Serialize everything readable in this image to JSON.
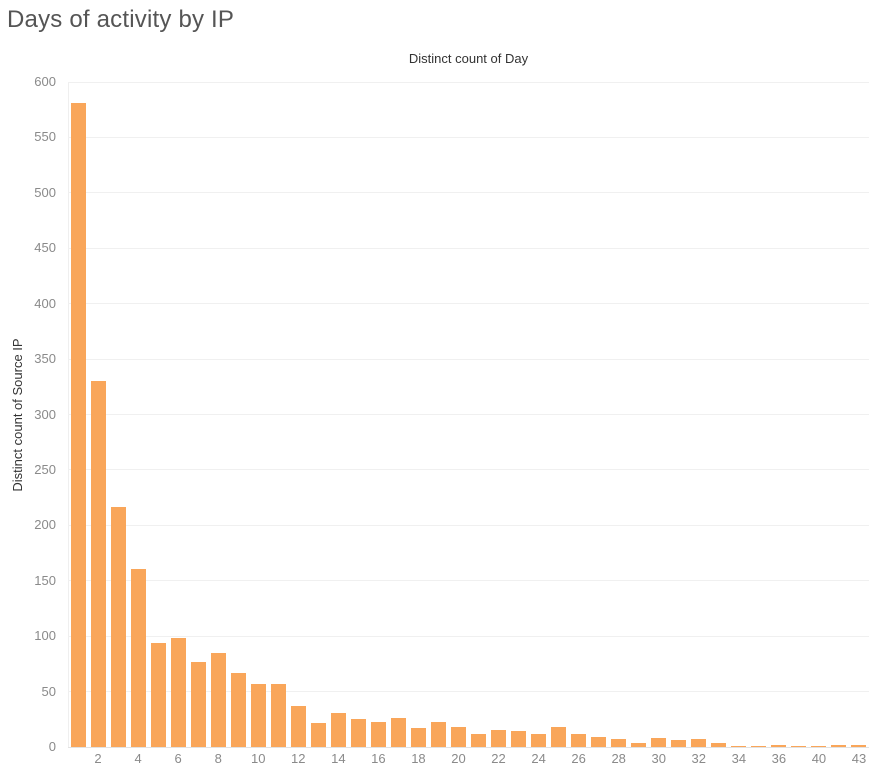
{
  "title": "Days of activity by IP",
  "colors": {
    "bar": "#F9A65A",
    "gridline": "#F0F0F0",
    "zero_line": "#E2E2E2",
    "tick_label": "#8A8A8A",
    "axis_title": "#333333",
    "title": "#555555"
  },
  "chart_data": {
    "type": "bar",
    "title": "Days of activity by IP",
    "xlabel": "Distinct count of Day",
    "ylabel": "Distinct count of Source IP",
    "categories": [
      1,
      2,
      3,
      4,
      5,
      6,
      7,
      8,
      9,
      10,
      11,
      12,
      13,
      14,
      15,
      16,
      17,
      18,
      19,
      20,
      21,
      22,
      23,
      24,
      25,
      26,
      27,
      28,
      29,
      30,
      31,
      32,
      33,
      34,
      35,
      36,
      38,
      40,
      41,
      43
    ],
    "values": [
      581,
      330,
      217,
      161,
      94,
      98,
      77,
      85,
      67,
      57,
      57,
      37,
      22,
      31,
      25,
      23,
      26,
      17,
      23,
      18,
      12,
      15,
      14,
      12,
      18,
      12,
      9,
      7,
      4,
      8,
      6,
      7,
      4,
      1,
      1,
      2,
      1,
      1,
      2,
      2
    ],
    "visible_x_tick_labels": [
      2,
      4,
      6,
      8,
      10,
      12,
      14,
      16,
      18,
      20,
      22,
      24,
      26,
      28,
      30,
      32,
      34,
      36,
      40,
      43
    ],
    "ylim": [
      0,
      600
    ],
    "ytick_step": 50,
    "grid": true,
    "legend": "none",
    "bar_color": "#F9A65A"
  }
}
